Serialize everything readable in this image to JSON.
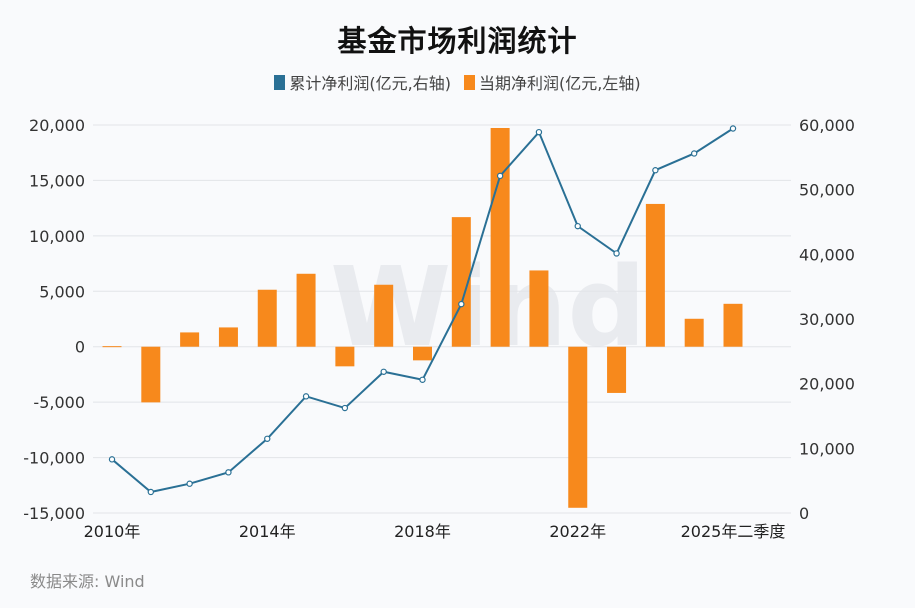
{
  "title": "基金市场利润统计",
  "legend": [
    {
      "label": "累计净利润(亿元,右轴)",
      "color": "#2a7095"
    },
    {
      "label": "当期净利润(亿元,左轴)",
      "color": "#f7891c"
    }
  ],
  "source": "数据来源: Wind",
  "watermark": "Wind",
  "chart_data": {
    "type": "bar+line",
    "title": "基金市场利润统计",
    "categories": [
      "2010年",
      "2011年",
      "2012年",
      "2013年",
      "2014年",
      "2015年",
      "2016年",
      "2017年",
      "2018年",
      "2019年",
      "2020年",
      "2021年",
      "2022年",
      "2023年",
      "2024年",
      "2025年",
      "2025年二季度"
    ],
    "x_tick_labels": [
      "2010年",
      "2014年",
      "2018年",
      "2022年",
      "2025年二季度"
    ],
    "series": [
      {
        "name": "当期净利润(亿元,左轴)",
        "type": "bar",
        "axis": "left",
        "color": "#f7891c",
        "values": [
          50,
          -5020,
          1290,
          1740,
          5140,
          6580,
          -1770,
          5590,
          -1230,
          11690,
          19730,
          6880,
          -14530,
          -4170,
          12880,
          2520,
          3870
        ]
      },
      {
        "name": "累计净利润(亿元,右轴)",
        "type": "line",
        "axis": "right",
        "color": "#2a7095",
        "values": [
          8300,
          3250,
          4530,
          6290,
          11480,
          18040,
          16230,
          21840,
          20600,
          32300,
          52140,
          58890,
          44360,
          40140,
          53010,
          55600,
          59460
        ]
      }
    ],
    "left_axis": {
      "ylim": [
        -15000,
        20000
      ],
      "ticks": [
        "20,000",
        "15,000",
        "10,000",
        "5,000",
        "0",
        "-5,000",
        "-10,000",
        "-15,000"
      ]
    },
    "right_axis": {
      "ylim": [
        0,
        60000
      ],
      "ticks": [
        "60,000",
        "50,000",
        "40,000",
        "30,000",
        "20,000",
        "10,000",
        "0"
      ]
    },
    "grid": true,
    "legend_position": "top"
  }
}
